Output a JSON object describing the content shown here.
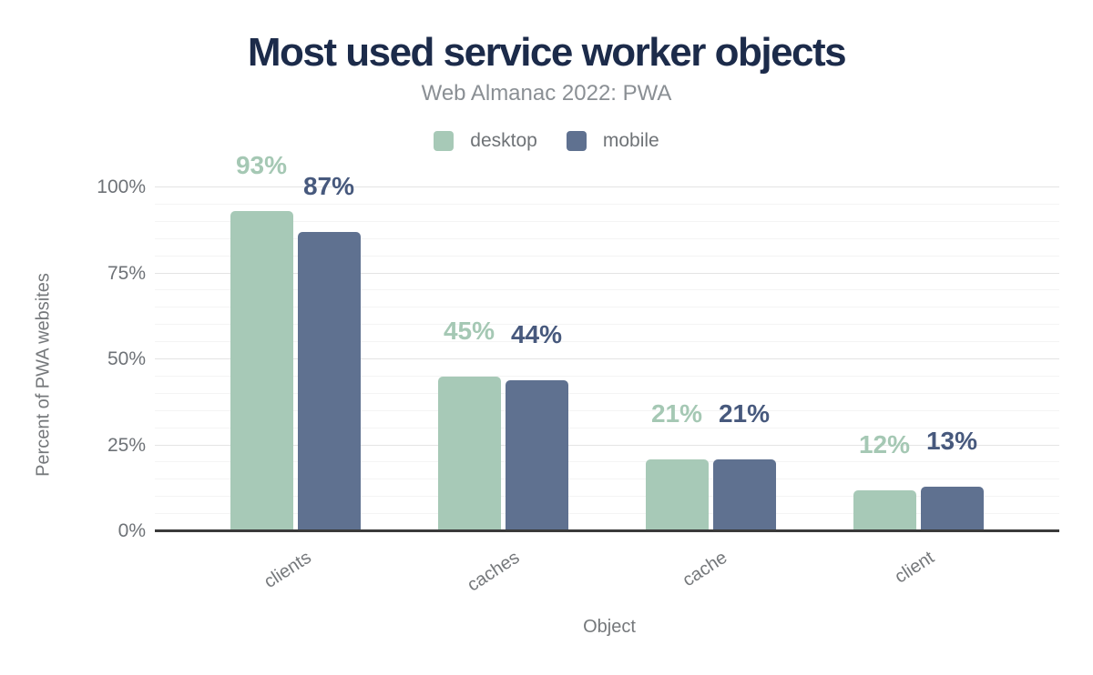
{
  "title": "Most used service worker objects",
  "subtitle": "Web Almanac 2022: PWA",
  "colors": {
    "background": "#ffffff",
    "title": "#1c2b4a",
    "subtitle": "#8a8f94",
    "axis_text": "#75787b",
    "tick_text": "#6e7277",
    "axis_line": "#3a3a3a",
    "gridline_major": "#e4e4e4",
    "gridline_minor": "#f4f4f4",
    "desktop": "#a7c9b7",
    "mobile": "#5f7190",
    "desktop_label": "#a5c8b4",
    "mobile_label": "#47597d"
  },
  "chart_data": {
    "type": "bar",
    "title": "Most used service worker objects",
    "subtitle": "Web Almanac 2022: PWA",
    "categories": [
      "clients",
      "caches",
      "cache",
      "client"
    ],
    "series": [
      {
        "name": "desktop",
        "color": "#a7c9b7",
        "label_color": "#a5c8b4",
        "values": [
          93,
          45,
          21,
          12
        ]
      },
      {
        "name": "mobile",
        "color": "#5f7190",
        "label_color": "#47597d",
        "values": [
          87,
          44,
          21,
          13
        ]
      }
    ],
    "value_suffix": "%",
    "value_labels": {
      "desktop": [
        "93%",
        "45%",
        "21%",
        "12%"
      ],
      "mobile": [
        "87%",
        "44%",
        "21%",
        "13%"
      ]
    },
    "xlabel": "Object",
    "ylabel": "Percent of PWA websites",
    "ylim": [
      0,
      100
    ],
    "yticks": [
      0,
      25,
      50,
      75,
      100
    ],
    "ytick_labels": [
      "0%",
      "25%",
      "50%",
      "75%",
      "100%"
    ],
    "minor_grid_step": 5,
    "grid": true,
    "legend_position": "top"
  }
}
